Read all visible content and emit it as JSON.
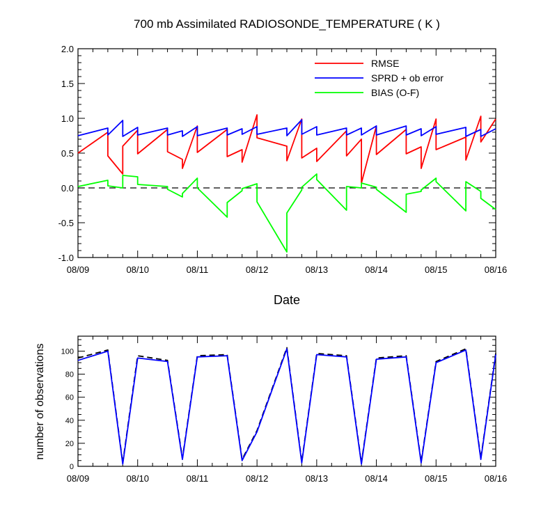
{
  "chart_data": [
    {
      "type": "line",
      "title": "700 mb Assimilated RADIOSONDE_TEMPERATURE ( K )",
      "xlabel": "Date",
      "ylabel": "",
      "xlim": [
        0,
        7
      ],
      "ylim": [
        -1.0,
        2.0
      ],
      "x_tick_labels": [
        "08/09",
        "08/10",
        "08/11",
        "08/12",
        "08/13",
        "08/14",
        "08/15",
        "08/16"
      ],
      "y_tick_labels": [
        "-1.0",
        "-0.5",
        "0.0",
        "0.5",
        "1.0",
        "1.5",
        "2.0"
      ],
      "legend_position": "top-right",
      "zero_line": "dashed",
      "series": [
        {
          "name": "RMSE",
          "color": "#ff0000",
          "x": [
            0.0,
            0.5,
            0.5,
            0.75,
            0.75,
            1.0,
            1.0,
            1.5,
            1.5,
            1.75,
            1.75,
            2.0,
            2.0,
            2.5,
            2.5,
            2.75,
            2.75,
            3.0,
            3.0,
            3.5,
            3.5,
            3.75,
            3.75,
            4.0,
            4.0,
            4.5,
            4.5,
            4.75,
            4.75,
            5.0,
            5.0,
            5.5,
            5.5,
            5.75,
            5.75,
            6.0,
            6.0,
            6.5,
            6.5,
            6.75,
            6.75,
            7.0
          ],
          "y": [
            0.5,
            0.8,
            0.46,
            0.2,
            0.6,
            0.83,
            0.49,
            0.84,
            0.52,
            0.41,
            0.28,
            0.89,
            0.51,
            0.84,
            0.45,
            0.55,
            0.37,
            1.05,
            0.72,
            0.6,
            0.39,
            0.99,
            0.43,
            0.57,
            0.38,
            0.82,
            0.46,
            0.7,
            0.07,
            0.89,
            0.48,
            0.84,
            0.49,
            0.59,
            0.28,
            0.99,
            0.55,
            0.73,
            0.4,
            1.03,
            0.66,
            0.99
          ]
        },
        {
          "name": "SPRD + ob error",
          "color": "#0000ff",
          "x": [
            0.0,
            0.5,
            0.5,
            0.75,
            0.75,
            1.0,
            1.0,
            1.5,
            1.5,
            1.75,
            1.75,
            2.0,
            2.0,
            2.5,
            2.5,
            2.75,
            2.75,
            3.0,
            3.0,
            3.5,
            3.5,
            3.75,
            3.75,
            4.0,
            4.0,
            4.5,
            4.5,
            4.75,
            4.75,
            5.0,
            5.0,
            5.5,
            5.5,
            5.75,
            5.75,
            6.0,
            6.0,
            6.5,
            6.5,
            6.75,
            6.75,
            7.0
          ],
          "y": [
            0.75,
            0.86,
            0.76,
            0.97,
            0.74,
            0.87,
            0.76,
            0.86,
            0.76,
            0.82,
            0.74,
            0.88,
            0.75,
            0.86,
            0.76,
            0.85,
            0.77,
            0.88,
            0.77,
            0.86,
            0.75,
            0.98,
            0.77,
            0.88,
            0.76,
            0.86,
            0.76,
            0.86,
            0.76,
            0.89,
            0.76,
            0.89,
            0.76,
            0.85,
            0.75,
            0.88,
            0.77,
            0.87,
            0.74,
            0.84,
            0.74,
            0.85
          ]
        },
        {
          "name": "BIAS (O-F)",
          "color": "#00ff00",
          "x": [
            0.0,
            0.5,
            0.5,
            0.75,
            0.75,
            1.0,
            1.0,
            1.5,
            1.5,
            1.75,
            1.75,
            2.0,
            2.0,
            2.5,
            2.5,
            2.75,
            2.75,
            3.0,
            3.0,
            3.5,
            3.5,
            3.75,
            3.75,
            4.0,
            4.0,
            4.5,
            4.5,
            4.75,
            4.75,
            5.0,
            5.0,
            5.5,
            5.5,
            5.75,
            5.75,
            6.0,
            6.0,
            6.5,
            6.5,
            6.75,
            6.75,
            7.0
          ],
          "y": [
            0.02,
            0.11,
            0.03,
            0.0,
            0.18,
            0.16,
            0.05,
            0.02,
            -0.02,
            -0.13,
            -0.08,
            0.14,
            0.0,
            -0.42,
            -0.21,
            -0.04,
            -0.01,
            0.06,
            -0.2,
            -0.92,
            -0.36,
            -0.03,
            0.01,
            0.2,
            0.12,
            -0.32,
            0.02,
            0.0,
            0.07,
            0.01,
            -0.02,
            -0.35,
            -0.09,
            -0.05,
            -0.03,
            0.14,
            0.09,
            -0.33,
            0.09,
            -0.05,
            -0.15,
            -0.31
          ]
        }
      ]
    },
    {
      "type": "line",
      "title": "",
      "xlabel": "",
      "ylabel": "number of observations",
      "xlim": [
        0,
        7
      ],
      "ylim": [
        0,
        113
      ],
      "x_tick_labels": [
        "08/09",
        "08/10",
        "08/11",
        "08/12",
        "08/13",
        "08/14",
        "08/15",
        "08/16"
      ],
      "y_tick_labels": [
        "0",
        "20",
        "40",
        "60",
        "80",
        "100"
      ],
      "series": [
        {
          "line_style": "dashed",
          "color": "#000000",
          "x": [
            0.0,
            0.5,
            0.75,
            1.0,
            1.5,
            1.75,
            2.0,
            2.5,
            2.75,
            3.0,
            3.5,
            3.75,
            4.0,
            4.5,
            4.75,
            5.0,
            5.5,
            5.75,
            6.0,
            6.5,
            6.75,
            7.0
          ],
          "y": [
            94,
            101,
            3,
            96,
            92,
            7,
            96,
            97,
            6,
            31,
            103,
            4,
            98,
            96,
            3,
            94,
            96,
            4,
            91,
            102,
            7,
            98
          ]
        },
        {
          "line_style": "solid",
          "color": "#0000ff",
          "x": [
            0.0,
            0.5,
            0.75,
            1.0,
            1.5,
            1.75,
            2.0,
            2.5,
            2.75,
            3.0,
            3.5,
            3.75,
            4.0,
            4.5,
            4.75,
            5.0,
            5.5,
            5.75,
            6.0,
            6.5,
            6.75,
            7.0
          ],
          "y": [
            92,
            100,
            2,
            94,
            91,
            6,
            95,
            96,
            5,
            30,
            102,
            3,
            97,
            95,
            2,
            93,
            95,
            3,
            90,
            101,
            6,
            97
          ]
        }
      ]
    }
  ]
}
